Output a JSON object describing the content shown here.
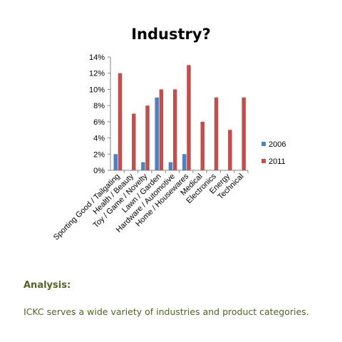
{
  "chart_data": {
    "type": "bar",
    "title": "Industry?",
    "categories": [
      "Sporting Good / Tailgating",
      "Health / Beauty",
      "Toy / Game / Novelty",
      "Lawn / Garden",
      "Hardware / Automotive",
      "Home / Housewares",
      "Medical",
      "Electronics",
      "Energy",
      "Technical"
    ],
    "series": [
      {
        "name": "2006",
        "color": "#4f81bd",
        "values": [
          2,
          0,
          1,
          9,
          1,
          2,
          0,
          0,
          0,
          0
        ]
      },
      {
        "name": "2011",
        "color": "#c0504d",
        "values": [
          12,
          7,
          8,
          10,
          10,
          13,
          6,
          9,
          5,
          9
        ]
      }
    ],
    "ylim": [
      0,
      14
    ],
    "yticks": [
      "0%",
      "2%",
      "4%",
      "6%",
      "8%",
      "10%",
      "12%",
      "14%"
    ],
    "grid": false,
    "legend_position": "right"
  },
  "analysis": {
    "heading": "Analysis:",
    "text": "ICKC serves a wide variety of industries and product categories."
  }
}
